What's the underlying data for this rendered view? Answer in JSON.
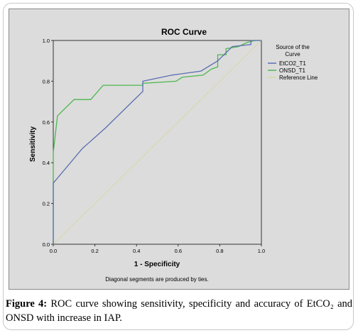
{
  "chart_data": {
    "type": "line",
    "title": "ROC Curve",
    "xlabel": "1 - Specificity",
    "ylabel": "Sensitivity",
    "xlim": [
      0.0,
      1.0
    ],
    "ylim": [
      0.0,
      1.0
    ],
    "x_ticks": [
      "0.0",
      "0.2",
      "0.4",
      "0.6",
      "0.8",
      "1.0"
    ],
    "y_ticks": [
      "0.0",
      "0.2",
      "0.4",
      "0.6",
      "0.8",
      "1.0"
    ],
    "grid": false,
    "legend": {
      "title": "Source of the Curve",
      "placement": "right"
    },
    "series": [
      {
        "name": "EtCO2_T1",
        "color": "#5a6fb0",
        "points": [
          [
            0.0,
            0.0
          ],
          [
            0.0,
            0.3
          ],
          [
            0.14,
            0.47
          ],
          [
            0.25,
            0.57
          ],
          [
            0.38,
            0.7
          ],
          [
            0.43,
            0.75
          ],
          [
            0.43,
            0.8
          ],
          [
            0.57,
            0.83
          ],
          [
            0.71,
            0.85
          ],
          [
            0.79,
            0.9
          ],
          [
            0.86,
            0.97
          ],
          [
            0.95,
            0.98
          ],
          [
            0.95,
            1.0
          ],
          [
            1.0,
            1.0
          ]
        ]
      },
      {
        "name": "ONSD_T1",
        "color": "#4cb84c",
        "points": [
          [
            0.0,
            0.0
          ],
          [
            0.0,
            0.45
          ],
          [
            0.02,
            0.63
          ],
          [
            0.1,
            0.71
          ],
          [
            0.18,
            0.71
          ],
          [
            0.24,
            0.78
          ],
          [
            0.43,
            0.78
          ],
          [
            0.43,
            0.79
          ],
          [
            0.59,
            0.8
          ],
          [
            0.62,
            0.82
          ],
          [
            0.72,
            0.83
          ],
          [
            0.76,
            0.86
          ],
          [
            0.79,
            0.87
          ],
          [
            0.79,
            0.93
          ],
          [
            0.83,
            0.93
          ],
          [
            0.83,
            0.96
          ],
          [
            0.89,
            0.97
          ],
          [
            0.93,
            0.99
          ],
          [
            0.97,
            1.0
          ],
          [
            1.0,
            1.0
          ]
        ]
      },
      {
        "name": "Reference Line",
        "color": "#d8d7a6",
        "points": [
          [
            0.0,
            0.0
          ],
          [
            1.0,
            1.0
          ]
        ]
      }
    ],
    "note": "Diagonal segments are produced by ties."
  },
  "caption": {
    "label": "Figure 4:",
    "text": " ROC curve showing sensitivity, specificity and accuracy of EtCO₂ and ONSD with increase in IAP."
  }
}
